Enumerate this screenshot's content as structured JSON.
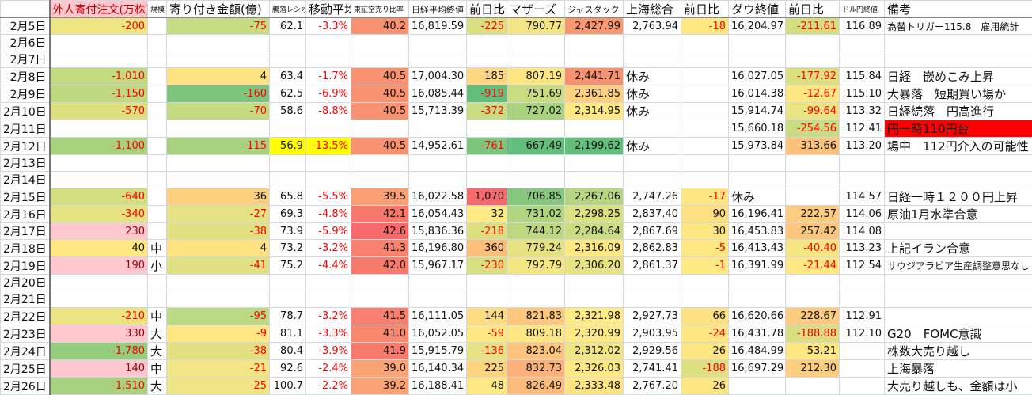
{
  "headers": [
    "",
    "外人寄付注文(万株)",
    "規模",
    "寄り付き金額(億)",
    "騰落レシオ",
    "移動平均",
    "東証空売り比率",
    "日経平均終値",
    "前日比",
    "マザーズ",
    "ジャスダック",
    "上海総合",
    "前日比",
    "ダウ終値",
    "前日比",
    "ドル円終値",
    "備考"
  ],
  "rows": [
    {
      "date": "2月5日",
      "cells": [
        "-200",
        "",
        "-75",
        "62.1",
        "-3.3%",
        "40.2",
        "16,819.59",
        "-225",
        "790.77",
        "2,427.99",
        "2,763.94",
        "-18",
        "16,204.97",
        "-211.61",
        "116.89",
        "為替トリガー115.8　雇用統計"
      ],
      "bg": [
        "#eee683",
        "",
        "#c6dc82",
        "",
        "",
        "#f99270",
        "",
        "#dcdf80",
        "#f3e586",
        "#f9976f",
        "",
        "#fde882",
        "",
        "#d4de81",
        "",
        ""
      ]
    },
    {
      "date": "2月6日",
      "cells": [
        "",
        "",
        "",
        "",
        "",
        "",
        "",
        "",
        "",
        "",
        "",
        "",
        "",
        "",
        "",
        ""
      ],
      "bg": []
    },
    {
      "date": "2月7日",
      "cells": [
        "",
        "",
        "",
        "",
        "",
        "",
        "",
        "",
        "",
        "",
        "",
        "",
        "",
        "",
        "",
        ""
      ],
      "bg": []
    },
    {
      "date": "2月8日",
      "cells": [
        "-1,010",
        "",
        "4",
        "63.4",
        "-1.7%",
        "40.5",
        "17,004.30",
        "185",
        "807.19",
        "2,441.71",
        "休み",
        "",
        "16,027.05",
        "-177.92",
        "115.84",
        "日経　嵌めこみ上昇"
      ],
      "bg": [
        "#c2da80",
        "",
        "#ffe383",
        "",
        "",
        "#f99270",
        "",
        "#fed880",
        "#fee783",
        "#f8916f",
        "",
        "",
        "",
        "#dde080",
        "",
        ""
      ]
    },
    {
      "date": "2月9日",
      "cells": [
        "-1,150",
        "",
        "-160",
        "62.5",
        "-6.9%",
        "40.5",
        "16,085.44",
        "-919",
        "751.69",
        "2,361.85",
        "休み",
        "",
        "16,014.38",
        "-12.67",
        "115.10",
        "大暴落　短期買い場か"
      ],
      "bg": [
        "#bfd981",
        "",
        "#7fc47c",
        "",
        "",
        "#f99270",
        "",
        "#63be7b",
        "#cadc81",
        "#fdd07f",
        "",
        "",
        "",
        "#fee683",
        "",
        ""
      ]
    },
    {
      "date": "2月10日",
      "cells": [
        "-570",
        "",
        "-70",
        "58.6",
        "-8.8%",
        "40.5",
        "15,713.39",
        "-372",
        "727.02",
        "2,314.95",
        "休み",
        "",
        "15,914.74",
        "-99.64",
        "113.32",
        "日経続落　円高進行"
      ],
      "bg": [
        "#dce081",
        "",
        "#c4db81",
        "",
        "",
        "#f99270",
        "",
        "#c8dc81",
        "#a9d27f",
        "#fde883",
        "",
        "",
        "",
        "#ebe482",
        "",
        ""
      ]
    },
    {
      "date": "2月11日",
      "cells": [
        "",
        "",
        "",
        "",
        "",
        "",
        "",
        "",
        "",
        "",
        "",
        "",
        "15,660.18",
        "-254.56",
        "112.41",
        "円一時110円台"
      ],
      "bg": [
        "",
        "",
        "",
        "",
        "",
        "",
        "",
        "",
        "",
        "",
        "",
        "",
        "",
        "#c9dc81",
        "",
        "#ff0000"
      ]
    },
    {
      "date": "2月12日",
      "cells": [
        "-1,100",
        "",
        "-115",
        "56.9",
        "-13.5%",
        "40.5",
        "14,952.61",
        "-761",
        "667.49",
        "2,199.62",
        "休み",
        "",
        "15,973.84",
        "313.66",
        "113.20",
        "場中　112円介入の可能性"
      ],
      "bg": [
        "#a9d27f",
        "",
        "#a8d27f",
        "#ffff00",
        "#ffff00",
        "#f99270",
        "",
        "#7cc57c",
        "#63be7b",
        "#63be7b",
        "",
        "",
        "",
        "#fcc27c",
        "",
        ""
      ]
    },
    {
      "date": "2月13日",
      "cells": [
        "",
        "",
        "",
        "",
        "",
        "",
        "",
        "",
        "",
        "",
        "",
        "",
        "",
        "",
        "",
        ""
      ],
      "bg": []
    },
    {
      "date": "2月14日",
      "cells": [
        "",
        "",
        "",
        "",
        "",
        "",
        "",
        "",
        "",
        "",
        "",
        "",
        "",
        "",
        "",
        ""
      ],
      "bg": []
    },
    {
      "date": "2月15日",
      "cells": [
        "-640",
        "",
        "36",
        "65.8",
        "-5.5%",
        "39.5",
        "16,022.58",
        "1,070",
        "706.85",
        "2,267.06",
        "2,747.26",
        "-17",
        "休み",
        "",
        "114.57",
        "日経一時１２００円上昇"
      ],
      "bg": [
        "#d4df81",
        "",
        "#fecf7f",
        "",
        "",
        "#faa073",
        "",
        "#f8696b",
        "#85c77c",
        "#b7d680",
        "",
        "#fee783",
        "",
        "",
        "",
        ""
      ]
    },
    {
      "date": "2月16日",
      "cells": [
        "-340",
        "",
        "-27",
        "69.3",
        "-4.8%",
        "42.1",
        "16,054.43",
        "32",
        "731.02",
        "2,298.25",
        "2,837.40",
        "90",
        "16,196.41",
        "222.57",
        "114.06",
        "原油1月水準合意"
      ],
      "bg": [
        "#e4e282",
        "",
        "#e4e282",
        "",
        "",
        "#f8786d",
        "",
        "#ffea84",
        "#b0d47f",
        "#dbe081",
        "",
        "#fee081",
        "",
        "#fdcc7e",
        "",
        ""
      ]
    },
    {
      "date": "2月17日",
      "cells": [
        "230",
        "",
        "-38",
        "73.9",
        "-5.9%",
        "42.6",
        "15,836.36",
        "-218",
        "744.12",
        "2,284.64",
        "2,867.69",
        "30",
        "16,453.83",
        "257.42",
        "114.08",
        ""
      ],
      "bg": [
        "#ffc7ce",
        "",
        "#e1e182",
        "",
        "",
        "#f8696b",
        "",
        "#dde081",
        "#bdd881",
        "#c9dc81",
        "",
        "#fee683",
        "",
        "#fcc77d",
        "",
        ""
      ]
    },
    {
      "date": "2月18日",
      "cells": [
        "40",
        "中",
        "4",
        "73.2",
        "-3.2%",
        "41.3",
        "16,196.80",
        "360",
        "779.24",
        "2,316.09",
        "2,862.83",
        "-5",
        "16,413.43",
        "-40.40",
        "113.23",
        "上記イラン合意"
      ],
      "bg": [
        "#ffe884",
        "",
        "#ffe383",
        "",
        "",
        "#f9826e",
        "",
        "#fcbe7b",
        "#e6e282",
        "#fee883",
        "",
        "#fee884",
        "",
        "#f4e683",
        "",
        ""
      ]
    },
    {
      "date": "2月19日",
      "cells": [
        "190",
        "小",
        "-41",
        "75.2",
        "-4.4%",
        "42.0",
        "15,967.17",
        "-230",
        "792.79",
        "2,306.20",
        "2,861.37",
        "-1",
        "16,391.99",
        "-21.44",
        "112.54",
        "サウジアラビア生産調整意思なし"
      ],
      "bg": [
        "#ffc7ce",
        "",
        "#e0e182",
        "",
        "",
        "#f87a6d",
        "",
        "#d8e081",
        "#f2e783",
        "#e8e382",
        "",
        "#fee984",
        "",
        "#fde883",
        "",
        ""
      ]
    },
    {
      "date": "2月20日",
      "cells": [
        "",
        "",
        "",
        "",
        "",
        "",
        "",
        "",
        "",
        "",
        "",
        "",
        "",
        "",
        "",
        ""
      ],
      "bg": []
    },
    {
      "date": "2月21日",
      "cells": [
        "",
        "",
        "",
        "",
        "",
        "",
        "",
        "",
        "",
        "",
        "",
        "",
        "",
        "",
        "",
        ""
      ],
      "bg": []
    },
    {
      "date": "2月22日",
      "cells": [
        "-210",
        "中",
        "-95",
        "78.7",
        "-3.2%",
        "41.5",
        "16,111.05",
        "144",
        "821.83",
        "2,321.98",
        "2,927.73",
        "66",
        "16,620.66",
        "228.67",
        "112.91",
        ""
      ],
      "bg": [
        "#ece482",
        "",
        "#badb81",
        "",
        "",
        "#f9806e",
        "",
        "#fedc81",
        "#fdc87d",
        "#ffeb84",
        "",
        "#fee282",
        "",
        "#fdcb7e",
        "",
        ""
      ]
    },
    {
      "date": "2月23日",
      "cells": [
        "330",
        "大",
        "-9",
        "81.1",
        "-3.3%",
        "41.0",
        "16,052.05",
        "-59",
        "809.18",
        "2,320.99",
        "2,903.95",
        "-24",
        "16,431.78",
        "-188.88",
        "112.10",
        "G20　FOMC意識"
      ],
      "bg": [
        "#ffc7ce",
        "",
        "#ffe884",
        "",
        "",
        "#f9886e",
        "",
        "#fde884",
        "#fee783",
        "#fee984",
        "",
        "#fee683",
        "",
        "#d9df81",
        "",
        ""
      ]
    },
    {
      "date": "2月24日",
      "cells": [
        "-1,780",
        "大",
        "-38",
        "80.4",
        "-3.9%",
        "41.9",
        "15,915.79",
        "-136",
        "823.04",
        "2,312.02",
        "2,929.56",
        "26",
        "16,484.99",
        "53.21",
        "",
        "株数大売り越し"
      ],
      "bg": [
        "#95cd7e",
        "",
        "#e1e182",
        "",
        "",
        "#f87a6d",
        "",
        "#e4e282",
        "#fdc47d",
        "#f0e583",
        "",
        "#fee683",
        "",
        "#fee683",
        "",
        ""
      ]
    },
    {
      "date": "2月25日",
      "cells": [
        "140",
        "中",
        "-21",
        "92.6",
        "-2.4%",
        "39.0",
        "16,140.34",
        "225",
        "832.73",
        "2,326.03",
        "2,741.41",
        "-188",
        "16,697.29",
        "212.30",
        "",
        "上海暴落"
      ],
      "bg": [
        "#ffc7ce",
        "",
        "#f2e583",
        "",
        "",
        "#faa475",
        "",
        "#fed47f",
        "#fbb179",
        "#fee883",
        "",
        "#dde081",
        "",
        "#fdce7e",
        "",
        ""
      ]
    },
    {
      "date": "2月26日",
      "cells": [
        "-1,510",
        "大",
        "-25",
        "100.7",
        "-2.2%",
        "39.2",
        "16,188.41",
        "48",
        "826.49",
        "2,333.48",
        "2,767.20",
        "26",
        "",
        "",
        "",
        "大売り越しも、金額は小"
      ],
      "bg": [
        "#a7d27f",
        "",
        "#f0e583",
        "",
        "",
        "#fba274",
        "",
        "#ffe984",
        "#fcbd7b",
        "#fee483",
        "",
        "#fee683",
        "",
        "",
        "",
        ""
      ]
    }
  ]
}
